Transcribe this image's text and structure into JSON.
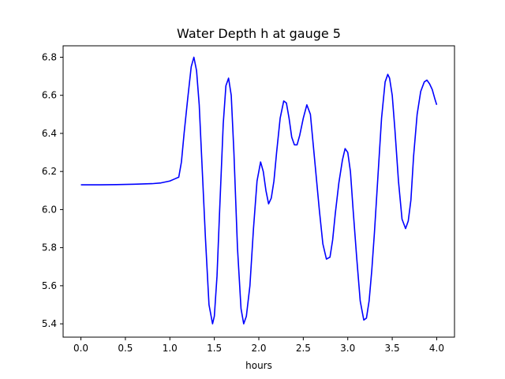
{
  "chart_data": {
    "type": "line",
    "title": "Water Depth h at gauge 5",
    "xlabel": "hours",
    "ylabel": "",
    "xlim": [
      -0.2,
      4.2
    ],
    "ylim": [
      5.33,
      6.86
    ],
    "xticks": [
      0.0,
      0.5,
      1.0,
      1.5,
      2.0,
      2.5,
      3.0,
      3.5,
      4.0
    ],
    "xtick_labels": [
      "0.0",
      "0.5",
      "1.0",
      "1.5",
      "2.0",
      "2.5",
      "3.0",
      "3.5",
      "4.0"
    ],
    "yticks": [
      5.4,
      5.6,
      5.8,
      6.0,
      6.2,
      6.4,
      6.6,
      6.8
    ],
    "ytick_labels": [
      "5.4",
      "5.6",
      "5.8",
      "6.0",
      "6.2",
      "6.4",
      "6.6",
      "6.8"
    ],
    "grid": false,
    "line_color": "#0000ff",
    "series": [
      {
        "x": [
          0.0,
          0.2,
          0.4,
          0.6,
          0.8,
          0.9,
          1.0,
          1.05,
          1.1,
          1.13,
          1.16,
          1.2,
          1.24,
          1.27,
          1.3,
          1.33,
          1.36,
          1.4,
          1.44,
          1.48,
          1.5,
          1.53,
          1.56,
          1.6,
          1.63,
          1.66,
          1.69,
          1.72,
          1.76,
          1.8,
          1.83,
          1.86,
          1.9,
          1.94,
          1.98,
          2.02,
          2.05,
          2.08,
          2.11,
          2.14,
          2.17,
          2.2,
          2.24,
          2.28,
          2.31,
          2.34,
          2.37,
          2.4,
          2.43,
          2.46,
          2.5,
          2.54,
          2.58,
          2.61,
          2.64,
          2.68,
          2.72,
          2.76,
          2.8,
          2.83,
          2.86,
          2.9,
          2.94,
          2.97,
          3.0,
          3.03,
          3.06,
          3.1,
          3.14,
          3.18,
          3.21,
          3.24,
          3.27,
          3.3,
          3.34,
          3.38,
          3.42,
          3.45,
          3.47,
          3.5,
          3.53,
          3.57,
          3.61,
          3.65,
          3.68,
          3.71,
          3.74,
          3.78,
          3.82,
          3.86,
          3.89,
          3.92,
          3.95,
          3.98,
          4.0
        ],
        "y": [
          6.13,
          6.13,
          6.131,
          6.133,
          6.136,
          6.14,
          6.15,
          6.16,
          6.17,
          6.25,
          6.4,
          6.58,
          6.75,
          6.8,
          6.73,
          6.55,
          6.25,
          5.85,
          5.5,
          5.4,
          5.44,
          5.65,
          6.0,
          6.45,
          6.65,
          6.69,
          6.6,
          6.3,
          5.8,
          5.48,
          5.4,
          5.44,
          5.6,
          5.9,
          6.15,
          6.25,
          6.2,
          6.1,
          6.03,
          6.06,
          6.15,
          6.3,
          6.48,
          6.57,
          6.56,
          6.48,
          6.38,
          6.34,
          6.34,
          6.39,
          6.48,
          6.55,
          6.5,
          6.35,
          6.2,
          6.0,
          5.82,
          5.74,
          5.75,
          5.84,
          5.98,
          6.14,
          6.26,
          6.32,
          6.3,
          6.2,
          6.0,
          5.75,
          5.52,
          5.42,
          5.43,
          5.52,
          5.68,
          5.88,
          6.18,
          6.48,
          6.67,
          6.71,
          6.69,
          6.6,
          6.42,
          6.15,
          5.95,
          5.9,
          5.94,
          6.05,
          6.28,
          6.5,
          6.62,
          6.67,
          6.68,
          6.66,
          6.63,
          6.58,
          6.55
        ]
      }
    ]
  }
}
